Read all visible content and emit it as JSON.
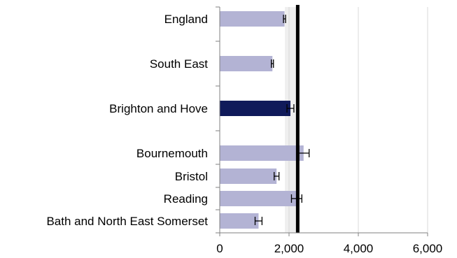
{
  "chart_data": {
    "type": "bar",
    "orientation": "horizontal",
    "categories": [
      "England",
      "South East",
      "Brighton and Hove",
      "Bournemouth",
      "Bristol",
      "Reading",
      "Bath and North East Somerset"
    ],
    "values": [
      1870,
      1520,
      2040,
      2420,
      1640,
      2220,
      1120
    ],
    "error_low": [
      1840,
      1490,
      1940,
      2260,
      1570,
      2070,
      1020
    ],
    "error_high": [
      1900,
      1550,
      2140,
      2580,
      1710,
      2370,
      1220
    ],
    "highlight_category": "Brighton and Hove",
    "reference_line": 2250,
    "shaded_band": [
      1880,
      2270
    ],
    "xlim": [
      0,
      6000
    ],
    "xticks": [
      "0",
      "2,000",
      "4,000",
      "6,000"
    ],
    "grid": "vertical",
    "colors": {
      "bar": "#b3b3d4",
      "highlight_bar": "#101a5a",
      "band": "#efefef",
      "gridline": "#d9d9d9",
      "reference_line": "#000000",
      "axis": "#808080",
      "error_bar": "#000000"
    },
    "title": "",
    "xlabel": "",
    "ylabel": ""
  }
}
